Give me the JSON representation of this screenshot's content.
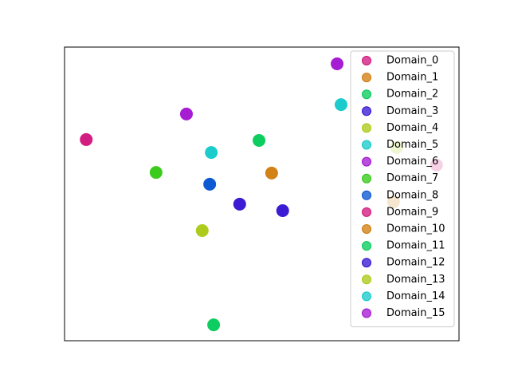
{
  "chart_data": {
    "type": "scatter",
    "xlim": [
      0,
      100
    ],
    "ylim": [
      0,
      100
    ],
    "legend": "upper right",
    "series": [
      {
        "name": "Domain_0",
        "color": "#d0117a",
        "x": [
          5.5
        ],
        "y": [
          68.5
        ]
      },
      {
        "name": "Domain_1",
        "color": "#d07a0a",
        "x": [
          52.5
        ],
        "y": [
          57.1
        ]
      },
      {
        "name": "Domain_2",
        "color": "#00c957",
        "x": [
          49.3
        ],
        "y": [
          68.2
        ]
      },
      {
        "name": "Domain_3",
        "color": "#3010d0",
        "x": [
          44.4
        ],
        "y": [
          46.5
        ]
      },
      {
        "name": "Domain_4",
        "color": "#a8c810",
        "x": [
          34.9
        ],
        "y": [
          37.5
        ]
      },
      {
        "name": "Domain_5",
        "color": "#10c8c8",
        "x": [
          37.2
        ],
        "y": [
          64.1
        ]
      },
      {
        "name": "Domain_6",
        "color": "#a010d0",
        "x": [
          30.9
        ],
        "y": [
          77.2
        ]
      },
      {
        "name": "Domain_7",
        "color": "#30c810",
        "x": [
          23.2
        ],
        "y": [
          57.3
        ]
      },
      {
        "name": "Domain_8",
        "color": "#0050d0",
        "x": [
          36.8
        ],
        "y": [
          53.3
        ]
      },
      {
        "name": "Domain_9",
        "color": "#d0117a",
        "x": [
          94.3
        ],
        "y": [
          59.8
        ]
      },
      {
        "name": "Domain_10",
        "color": "#d07a0a",
        "x": [
          83.4
        ],
        "y": [
          47.3
        ]
      },
      {
        "name": "Domain_11",
        "color": "#00c957",
        "x": [
          37.8
        ],
        "y": [
          5.4
        ]
      },
      {
        "name": "Domain_12",
        "color": "#3010d0",
        "x": [
          55.3
        ],
        "y": [
          44.3
        ]
      },
      {
        "name": "Domain_13",
        "color": "#a8c810",
        "x": [
          84.2
        ],
        "y": [
          65.8
        ]
      },
      {
        "name": "Domain_14",
        "color": "#10c8c8",
        "x": [
          70.1
        ],
        "y": [
          80.4
        ]
      },
      {
        "name": "Domain_15",
        "color": "#a010d0",
        "x": [
          69.1
        ],
        "y": [
          94.3
        ]
      }
    ]
  }
}
